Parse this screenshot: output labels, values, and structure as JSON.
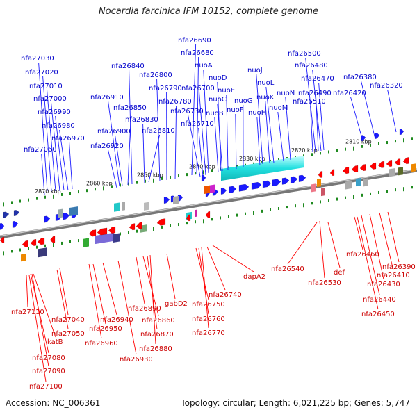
{
  "title": "Nocardia farcinica IFM 10152, complete genome",
  "footer": {
    "accession": "Accession: NC_006361",
    "summary": "Topology: circular; Length: 6,021,225 bp; Genes: 5,747"
  },
  "colors": {
    "forward": "#1a1aff",
    "reverse": "#ff0000",
    "forward_label": "#0000cc",
    "reverse_label": "#cc0000",
    "backbone": "#888888",
    "tick": "#1f8a1f",
    "operon_band": "#22dddd"
  },
  "ruler": [
    "2810 kbp",
    "2820 kbp",
    "2830 kbp",
    "2840 kbp",
    "2850 kbp",
    "2860 kbp",
    "2870 kbp"
  ],
  "forward_genes": [
    "nfa27030",
    "nfa27020",
    "nfa27010",
    "nfa27000",
    "nfa26990",
    "nfa26980",
    "nfa26970",
    "nfa27060",
    "nfa26840",
    "nfa26800",
    "nfa26790",
    "nfa26780",
    "nfa26910",
    "nfa26850",
    "nfa26830",
    "nfa26900",
    "nfa26810",
    "nfa26920",
    "nfa26690",
    "nfa26680",
    "nuoA",
    "nuoD",
    "nfa26700",
    "nuoE",
    "nuoC",
    "nfa26730",
    "nuoB",
    "nfa26710",
    "nuoG",
    "nuoF",
    "nuoJ",
    "nuoL",
    "nuoK",
    "nuoH",
    "nuoN",
    "nuoM",
    "nfa26500",
    "nfa26480",
    "nfa26470",
    "nfa26490",
    "nfa26510",
    "nfa26380",
    "nfa26420",
    "nfa26320"
  ],
  "reverse_genes": [
    "nfa27110",
    "nfa27040",
    "nfa27050",
    "katB",
    "nfa27080",
    "nfa27090",
    "nfa27100",
    "nfa26940",
    "nfa26950",
    "nfa26960",
    "nfa26930",
    "nfa26890",
    "nfa26860",
    "nfa26870",
    "nfa26880",
    "gabD2",
    "nfa26740",
    "nfa26750",
    "nfa26760",
    "nfa26770",
    "dapA2",
    "nfa26540",
    "nfa26530",
    "def",
    "nfa26460",
    "nfa26390",
    "nfa26410",
    "nfa26430",
    "nfa26440",
    "nfa26450"
  ]
}
